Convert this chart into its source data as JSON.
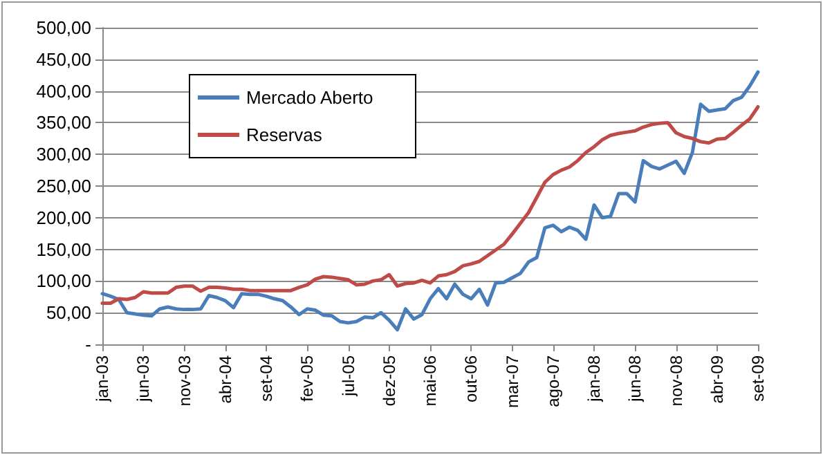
{
  "chart_data": {
    "type": "line",
    "categories": [
      "jan-03",
      null,
      null,
      null,
      null,
      "jun-03",
      null,
      null,
      null,
      null,
      "nov-03",
      null,
      null,
      null,
      null,
      "abr-04",
      null,
      null,
      null,
      null,
      "set-04",
      null,
      null,
      null,
      null,
      "fev-05",
      null,
      null,
      null,
      null,
      "jul-05",
      null,
      null,
      null,
      null,
      "dez-05",
      null,
      null,
      null,
      null,
      "mai-06",
      null,
      null,
      null,
      null,
      "out-06",
      null,
      null,
      null,
      null,
      "mar-07",
      null,
      null,
      null,
      null,
      "ago-07",
      null,
      null,
      null,
      null,
      "jan-08",
      null,
      null,
      null,
      null,
      "jun-08",
      null,
      null,
      null,
      null,
      "nov-08",
      null,
      null,
      null,
      null,
      "abr-09",
      null,
      null,
      null,
      null,
      "set-09"
    ],
    "series": [
      {
        "name": "Mercado Aberto",
        "color": "#4a7ebb",
        "values": [
          80,
          76,
          71,
          50,
          48,
          46,
          45,
          56,
          59,
          56,
          55,
          55,
          56,
          77,
          74,
          69,
          58,
          80,
          79,
          79,
          76,
          72,
          69,
          59,
          47,
          56,
          54,
          46,
          45,
          36,
          34,
          36,
          43,
          42,
          50,
          38,
          23,
          56,
          40,
          47,
          72,
          88,
          72,
          95,
          79,
          72,
          87,
          62,
          97,
          98,
          105,
          112,
          130,
          137,
          184,
          188,
          178,
          185,
          180,
          166,
          220,
          200,
          202,
          238,
          238,
          225,
          290,
          281,
          277,
          283,
          289,
          270,
          303,
          379,
          368,
          370,
          372,
          385,
          390,
          408,
          430
        ]
      },
      {
        "name": "Reservas",
        "color": "#be4b48",
        "values": [
          65,
          65,
          72,
          71,
          74,
          83,
          81,
          81,
          81,
          90,
          92,
          92,
          84,
          90,
          90,
          89,
          87,
          87,
          85,
          85,
          85,
          85,
          85,
          85,
          90,
          94,
          103,
          107,
          106,
          104,
          102,
          94,
          95,
          100,
          102,
          110,
          92,
          96,
          97,
          101,
          97,
          108,
          110,
          115,
          124,
          127,
          131,
          140,
          149,
          158,
          174,
          191,
          208,
          232,
          256,
          268,
          275,
          280,
          290,
          303,
          312,
          323,
          330,
          333,
          335,
          337,
          343,
          347,
          349,
          350,
          334,
          328,
          325,
          320,
          318,
          324,
          325,
          335,
          346,
          356,
          375
        ]
      }
    ],
    "ylim": [
      0,
      500
    ],
    "yticks": [
      {
        "value": 0,
        "label": "-"
      },
      {
        "value": 50,
        "label": "50,00"
      },
      {
        "value": 100,
        "label": "100,00"
      },
      {
        "value": 150,
        "label": "150,00"
      },
      {
        "value": 200,
        "label": "200,00"
      },
      {
        "value": 250,
        "label": "250,00"
      },
      {
        "value": 300,
        "label": "300,00"
      },
      {
        "value": 350,
        "label": "350,00"
      },
      {
        "value": 400,
        "label": "400,00"
      },
      {
        "value": 450,
        "label": "450,00"
      },
      {
        "value": 500,
        "label": "500,00"
      }
    ],
    "grid": "y",
    "legend": "top left",
    "marker": "none",
    "line_style": "solid"
  }
}
